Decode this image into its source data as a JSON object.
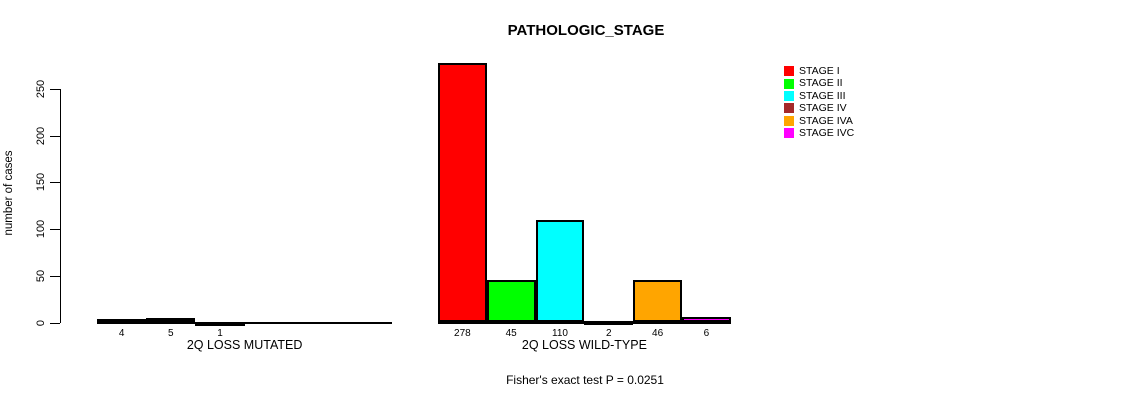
{
  "chart_data": {
    "type": "bar",
    "title": "PATHOLOGIC_STAGE",
    "ylabel": "number of cases",
    "xlabel": "",
    "ylim": [
      0,
      250
    ],
    "yticks": [
      0,
      50,
      100,
      150,
      200,
      250
    ],
    "grid": false,
    "legend_position": "right",
    "categories": [
      "2Q LOSS MUTATED",
      "2Q LOSS WILD-TYPE"
    ],
    "series": [
      {
        "name": "STAGE I",
        "color": "#FF0000",
        "values": [
          4,
          278
        ]
      },
      {
        "name": "STAGE II",
        "color": "#00FF00",
        "values": [
          5,
          45
        ]
      },
      {
        "name": "STAGE III",
        "color": "#00FFFF",
        "values": [
          1,
          110
        ]
      },
      {
        "name": "STAGE IV",
        "color": "#A52A2A",
        "values": [
          0,
          2
        ]
      },
      {
        "name": "STAGE IVA",
        "color": "#FFA500",
        "values": [
          0,
          46
        ]
      },
      {
        "name": "STAGE IVC",
        "color": "#FF00FF",
        "values": [
          0,
          6
        ]
      }
    ],
    "bar_value_labels_shown": true,
    "annotation": "Fisher's exact test P = 0.0251"
  }
}
